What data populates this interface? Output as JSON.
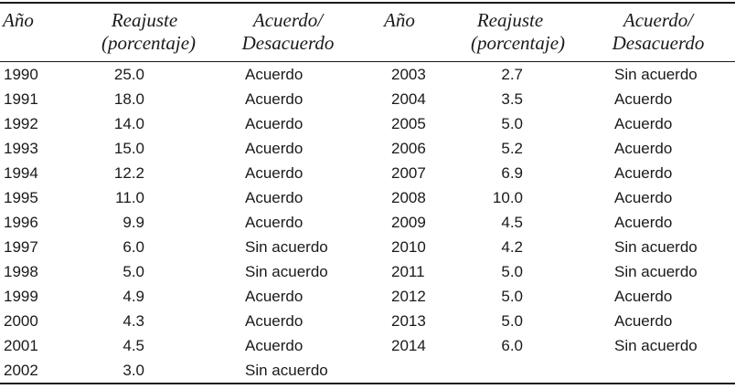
{
  "table": {
    "headers": {
      "year": "Año",
      "reajuste_line1": "Reajuste",
      "reajuste_line2": "(porcentaje)",
      "acuerdo_line1": "Acuerdo/",
      "acuerdo_line2": "Desacuerdo"
    },
    "left_rows": [
      {
        "year": "1990",
        "reajuste": "25.0",
        "acuerdo": "Acuerdo"
      },
      {
        "year": "1991",
        "reajuste": "18.0",
        "acuerdo": "Acuerdo"
      },
      {
        "year": "1992",
        "reajuste": "14.0",
        "acuerdo": "Acuerdo"
      },
      {
        "year": "1993",
        "reajuste": "15.0",
        "acuerdo": "Acuerdo"
      },
      {
        "year": "1994",
        "reajuste": "12.2",
        "acuerdo": "Acuerdo"
      },
      {
        "year": "1995",
        "reajuste": "11.0",
        "acuerdo": "Acuerdo"
      },
      {
        "year": "1996",
        "reajuste": "9.9",
        "acuerdo": "Acuerdo"
      },
      {
        "year": "1997",
        "reajuste": "6.0",
        "acuerdo": "Sin acuerdo"
      },
      {
        "year": "1998",
        "reajuste": "5.0",
        "acuerdo": "Sin acuerdo"
      },
      {
        "year": "1999",
        "reajuste": "4.9",
        "acuerdo": "Acuerdo"
      },
      {
        "year": "2000",
        "reajuste": "4.3",
        "acuerdo": "Acuerdo"
      },
      {
        "year": "2001",
        "reajuste": "4.5",
        "acuerdo": "Acuerdo"
      },
      {
        "year": "2002",
        "reajuste": "3.0",
        "acuerdo": "Sin acuerdo"
      }
    ],
    "right_rows": [
      {
        "year": "2003",
        "reajuste": "2.7",
        "acuerdo": "Sin acuerdo"
      },
      {
        "year": "2004",
        "reajuste": "3.5",
        "acuerdo": "Acuerdo"
      },
      {
        "year": "2005",
        "reajuste": "5.0",
        "acuerdo": "Acuerdo"
      },
      {
        "year": "2006",
        "reajuste": "5.2",
        "acuerdo": "Acuerdo"
      },
      {
        "year": "2007",
        "reajuste": "6.9",
        "acuerdo": "Acuerdo"
      },
      {
        "year": "2008",
        "reajuste": "10.0",
        "acuerdo": "Acuerdo"
      },
      {
        "year": "2009",
        "reajuste": "4.5",
        "acuerdo": "Acuerdo"
      },
      {
        "year": "2010",
        "reajuste": "4.2",
        "acuerdo": "Sin acuerdo"
      },
      {
        "year": "2011",
        "reajuste": "5.0",
        "acuerdo": "Sin acuerdo"
      },
      {
        "year": "2012",
        "reajuste": "5.0",
        "acuerdo": "Acuerdo"
      },
      {
        "year": "2013",
        "reajuste": "5.0",
        "acuerdo": "Acuerdo"
      },
      {
        "year": "2014",
        "reajuste": "6.0",
        "acuerdo": "Sin acuerdo"
      }
    ],
    "colors": {
      "text": "#1a1a1a",
      "rule": "#1a1a1a",
      "background": "#ffffff"
    }
  }
}
